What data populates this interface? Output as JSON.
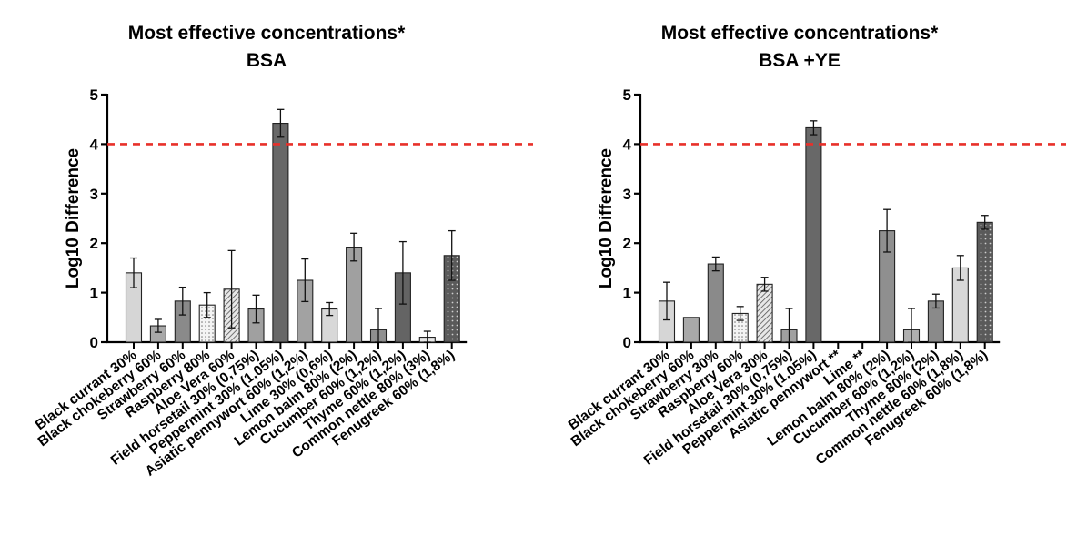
{
  "chart_data": [
    {
      "type": "bar",
      "title": "Most effective concentrations*",
      "subtitle": "BSA",
      "ylabel": "Log10 Difference",
      "xlabel": "",
      "ylim": [
        0,
        5
      ],
      "yticks": [
        0,
        1,
        2,
        3,
        4,
        5
      ],
      "grid": false,
      "threshold": {
        "value": 4,
        "color": "#e8302a",
        "style": "dashed"
      },
      "categories": [
        "Black currant 30%",
        "Black chokeberry  60%",
        "Strawberry 60%",
        "Raspberry 80%",
        "Aloe Vera 60%",
        "Field horsetail 30% (0,75%)",
        "Peppermint 30% (1,05%)",
        "Asiatic pennywort 60% (1,2%)",
        "Lime 30% (0,6%)",
        "Lemon balm 80% (2%)",
        "Cucumber  60% (1,2%)",
        "Thyme 60% (1,2%)",
        "Common nettle 80% (3%)",
        "Fenugreek 60% (1,8%)"
      ],
      "values": [
        1.4,
        0.33,
        0.83,
        0.75,
        1.07,
        0.67,
        4.42,
        1.25,
        0.67,
        1.92,
        0.25,
        1.4,
        0.1,
        1.75
      ],
      "errors": [
        0.3,
        0.13,
        0.28,
        0.25,
        0.78,
        0.28,
        0.28,
        0.43,
        0.13,
        0.28,
        0.43,
        0.63,
        0.12,
        0.5
      ],
      "fills": [
        "#d6d6d6",
        "#a8a8a8",
        "#8a8a8a",
        "dots",
        "hatch",
        "#a0a0a0",
        "#686868",
        "#a2a2a2",
        "#d8d8d8",
        "#a0a0a0",
        "#8f8f8f",
        "#646464",
        "#e8e8e8",
        "dotsdark"
      ]
    },
    {
      "type": "bar",
      "title": "Most effective concentrations*",
      "subtitle": "BSA +YE",
      "ylabel": "Log10 Difference",
      "xlabel": "",
      "ylim": [
        0,
        5
      ],
      "yticks": [
        0,
        1,
        2,
        3,
        4,
        5
      ],
      "grid": false,
      "threshold": {
        "value": 4,
        "color": "#e8302a",
        "style": "dashed"
      },
      "categories": [
        "Black currant 30%",
        "Black chokeberry 60%",
        "Strawberry 30%",
        "Raspberry 60%",
        "Aloe Vera 30%",
        "Field horsetail 30% (0,75%)",
        "Peppermint 30% (1,05%)",
        "Asiatic pennywort **",
        "Lime **",
        "Lemon balm 80% (2%)",
        "Cucumber 60% (1,2%)",
        "Thyme 80% (2%)",
        "Common nettle 60% (1,8%)",
        "Fenugreek 60% (1,8%)"
      ],
      "values": [
        0.83,
        0.5,
        1.58,
        0.58,
        1.17,
        0.25,
        4.33,
        0,
        0,
        2.25,
        0.25,
        0.83,
        1.5,
        2.42
      ],
      "errors": [
        0.38,
        0,
        0.14,
        0.14,
        0.14,
        0.43,
        0.14,
        0,
        0,
        0.43,
        0.43,
        0.14,
        0.25,
        0.14
      ],
      "fills": [
        "#d6d6d6",
        "#a8a8a8",
        "#8a8a8a",
        "dots",
        "hatch",
        "#a0a0a0",
        "#686868",
        "#a2a2a2",
        "#d8d8d8",
        "#8f8f8f",
        "#b0b0b0",
        "#8a8a8a",
        "#d8d8d8",
        "dotsdark"
      ]
    }
  ]
}
